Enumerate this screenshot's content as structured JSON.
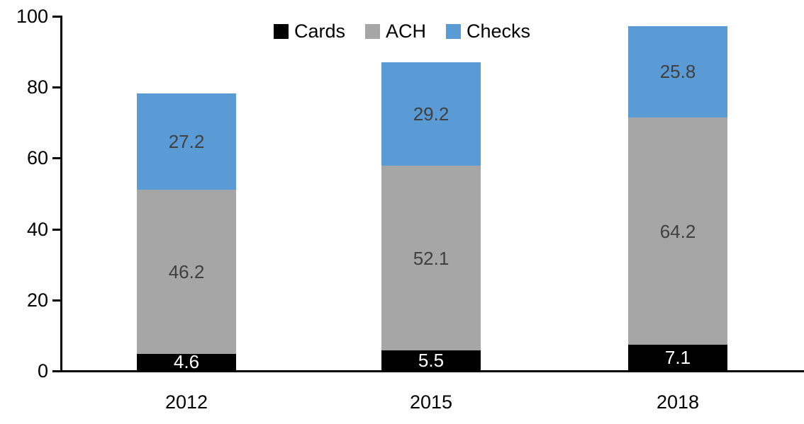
{
  "chart_data": {
    "type": "bar",
    "stacked": true,
    "title": "",
    "xlabel": "",
    "ylabel": "",
    "categories": [
      "2012",
      "2015",
      "2018"
    ],
    "series": [
      {
        "name": "Cards",
        "color": "#000000",
        "label_color": "#ffffff",
        "values": [
          4.6,
          5.5,
          7.1
        ]
      },
      {
        "name": "ACH",
        "color": "#A6A6A6",
        "label_color": "#404040",
        "values": [
          46.2,
          52.1,
          64.2
        ]
      },
      {
        "name": "Checks",
        "color": "#5B9BD5",
        "label_color": "#404040",
        "values": [
          27.2,
          29.2,
          25.8
        ]
      }
    ],
    "totals": [
      78.0,
      86.8,
      97.1
    ],
    "ylim": [
      0,
      100
    ],
    "yticks": [
      0,
      20,
      40,
      60,
      80,
      100
    ],
    "legend_position": "top-center",
    "legend_items": [
      "Cards",
      "ACH",
      "Checks"
    ],
    "grid": false,
    "axis_color": "#000000",
    "background_color": "#ffffff"
  }
}
